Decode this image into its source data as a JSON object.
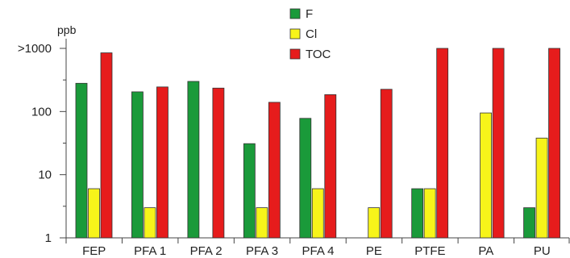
{
  "chart_data": {
    "type": "bar",
    "scale": "log",
    "ylim": [
      1,
      1000
    ],
    "ylabel": "ppb",
    "categories": [
      "FEP",
      "PFA 1",
      "PFA 2",
      "PFA 3",
      "PFA 4",
      "PE",
      "PTFE",
      "PA",
      "PU"
    ],
    "y_ticks": [
      {
        "value": 1,
        "label": "1"
      },
      {
        "value": 10,
        "label": "10"
      },
      {
        "value": 100,
        "label": "100"
      },
      {
        "value": 1000,
        "label": ">1000"
      }
    ],
    "series": [
      {
        "name": "F",
        "color": "#1a9a3a",
        "values": [
          280,
          205,
          300,
          31,
          78,
          null,
          6,
          null,
          3
        ]
      },
      {
        "name": "Cl",
        "color": "#f7f41a",
        "values": [
          6,
          3,
          null,
          3,
          6,
          3,
          6,
          95,
          38
        ]
      },
      {
        "name": "TOC",
        "color": "#e61c1c",
        "values": [
          850,
          245,
          235,
          140,
          185,
          225,
          1000,
          1000,
          1000
        ]
      }
    ],
    "legend_position": "top-center",
    "grid": false
  }
}
